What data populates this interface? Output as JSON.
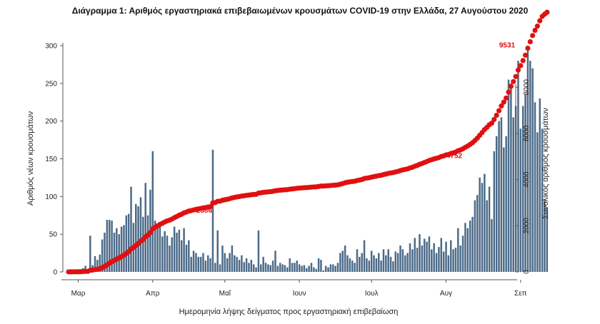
{
  "title": "Διάγραμμα 1: Αριθμός εργαστηριακά επιβεβαιωμένων κρουσμάτων COVID-19 στην Ελλάδα, 27 Αυγούστου 2020",
  "chart_data": {
    "type": "bar",
    "title": "Διάγραμμα 1: Αριθμός εργαστηριακά επιβεβαιωμένων κρουσμάτων COVID-19 στην Ελλάδα, 27 Αυγούστου 2020",
    "xlabel": "Ημερομηνία λήψης δείγματος προς εργαστηριακή επιβεβαίωση",
    "ylabel": "Αριθμός νέων κρουσμάτων",
    "y2label": "Συνολικός αριθμός κρουσμάτων",
    "ylim": [
      0,
      300
    ],
    "y2lim": [
      0,
      9800
    ],
    "yticks": [
      0,
      50,
      100,
      150,
      200,
      250,
      300
    ],
    "y2ticks": [
      0,
      2000,
      4000,
      6000,
      8000
    ],
    "x_start": "2020-02-26",
    "x_end": "2020-08-27",
    "xticks": [
      {
        "date": "2020-03-01",
        "label": "Μαρ"
      },
      {
        "date": "2020-04-01",
        "label": "Απρ"
      },
      {
        "date": "2020-05-01",
        "label": "Μαΐ"
      },
      {
        "date": "2020-06-01",
        "label": "Ιουν"
      },
      {
        "date": "2020-07-01",
        "label": "Ιουλ"
      },
      {
        "date": "2020-08-01",
        "label": "Αυγ"
      },
      {
        "date": "2020-09-01",
        "label": "Σεπ"
      }
    ],
    "grid": false,
    "colors": {
      "bars": "#4b6a88",
      "cumulative": "#e01010"
    },
    "series": [
      {
        "type": "bar",
        "values": [
          1,
          2,
          1,
          1,
          2,
          3,
          5,
          8,
          1,
          48,
          9,
          21,
          16,
          23,
          43,
          52,
          69,
          69,
          68,
          52,
          58,
          50,
          60,
          62,
          75,
          77,
          113,
          65,
          90,
          87,
          99,
          73,
          118,
          75,
          109,
          160,
          68,
          61,
          65,
          47,
          54,
          48,
          35,
          46,
          60,
          52,
          56,
          42,
          58,
          36,
          42,
          20,
          28,
          25,
          20,
          20,
          25,
          15,
          22,
          18,
          162,
          12,
          55,
          10,
          35,
          25,
          18,
          25,
          35,
          22,
          20,
          16,
          22,
          13,
          18,
          12,
          16,
          10,
          6,
          55,
          10,
          20,
          12,
          10,
          9,
          15,
          28,
          8,
          12,
          10,
          9,
          6,
          18,
          12,
          12,
          15,
          10,
          8,
          9,
          5,
          8,
          12,
          6,
          4,
          18,
          16,
          2,
          8,
          6,
          10,
          10,
          8,
          12,
          25,
          28,
          35,
          22,
          18,
          15,
          12,
          30,
          20,
          25,
          42,
          18,
          15,
          28,
          22,
          18,
          25,
          15,
          30,
          22,
          30,
          20,
          14,
          27,
          25,
          35,
          30,
          22,
          25,
          38,
          30,
          45,
          32,
          50,
          35,
          44,
          40,
          47,
          30,
          38,
          25,
          33,
          45,
          27,
          40,
          22,
          42,
          30,
          32,
          58,
          35,
          48,
          65,
          58,
          68,
          73,
          95,
          102,
          125,
          118,
          130,
          95,
          113,
          70,
          160,
          180,
          200,
          205,
          165,
          180,
          255,
          250,
          205,
          220,
          280,
          190,
          220,
          235,
          300,
          280,
          270,
          225,
          185,
          230,
          190,
          95,
          85
        ]
      },
      {
        "type": "line",
        "values": []
      }
    ],
    "annotations": [
      {
        "date": "2020-04-23",
        "value": 2386,
        "label": "2386"
      },
      {
        "date": "2020-08-05",
        "value": 4752,
        "label": "4752"
      },
      {
        "date": "2020-08-27",
        "value": 9531,
        "label": "9531"
      }
    ]
  }
}
